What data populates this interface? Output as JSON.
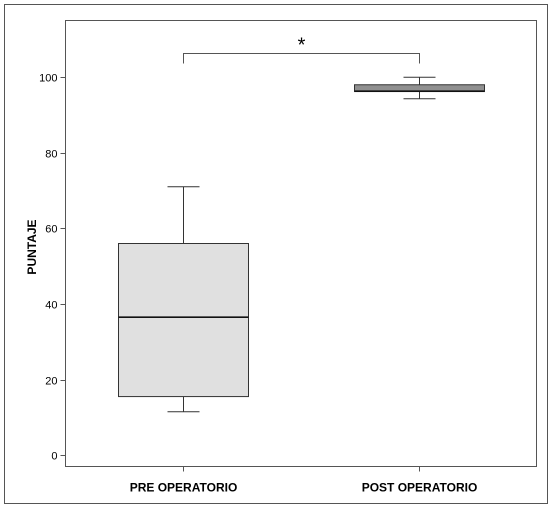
{
  "chart_data": {
    "type": "box",
    "categories": [
      "PRE OPERATORIO",
      "POST OPERATORIO"
    ],
    "boxes": [
      {
        "category": "PRE OPERATORIO",
        "min": 11.5,
        "q1": 15.5,
        "median": 36.5,
        "q3": 56,
        "max": 71,
        "fill": "#e0e0e0"
      },
      {
        "category": "POST OPERATORIO",
        "min": 94.3,
        "q1": 96.2,
        "median": 96.3,
        "q3": 98,
        "max": 100,
        "fill": "#909090"
      }
    ],
    "xlabel": "",
    "ylabel": "PUNTAJE",
    "ylim": [
      -3,
      115
    ],
    "yticks": [
      0,
      20,
      40,
      60,
      80,
      100
    ],
    "grid": false,
    "annotation": {
      "text": "*",
      "between": [
        "PRE OPERATORIO",
        "POST OPERATORIO"
      ],
      "y": 106.5
    }
  }
}
